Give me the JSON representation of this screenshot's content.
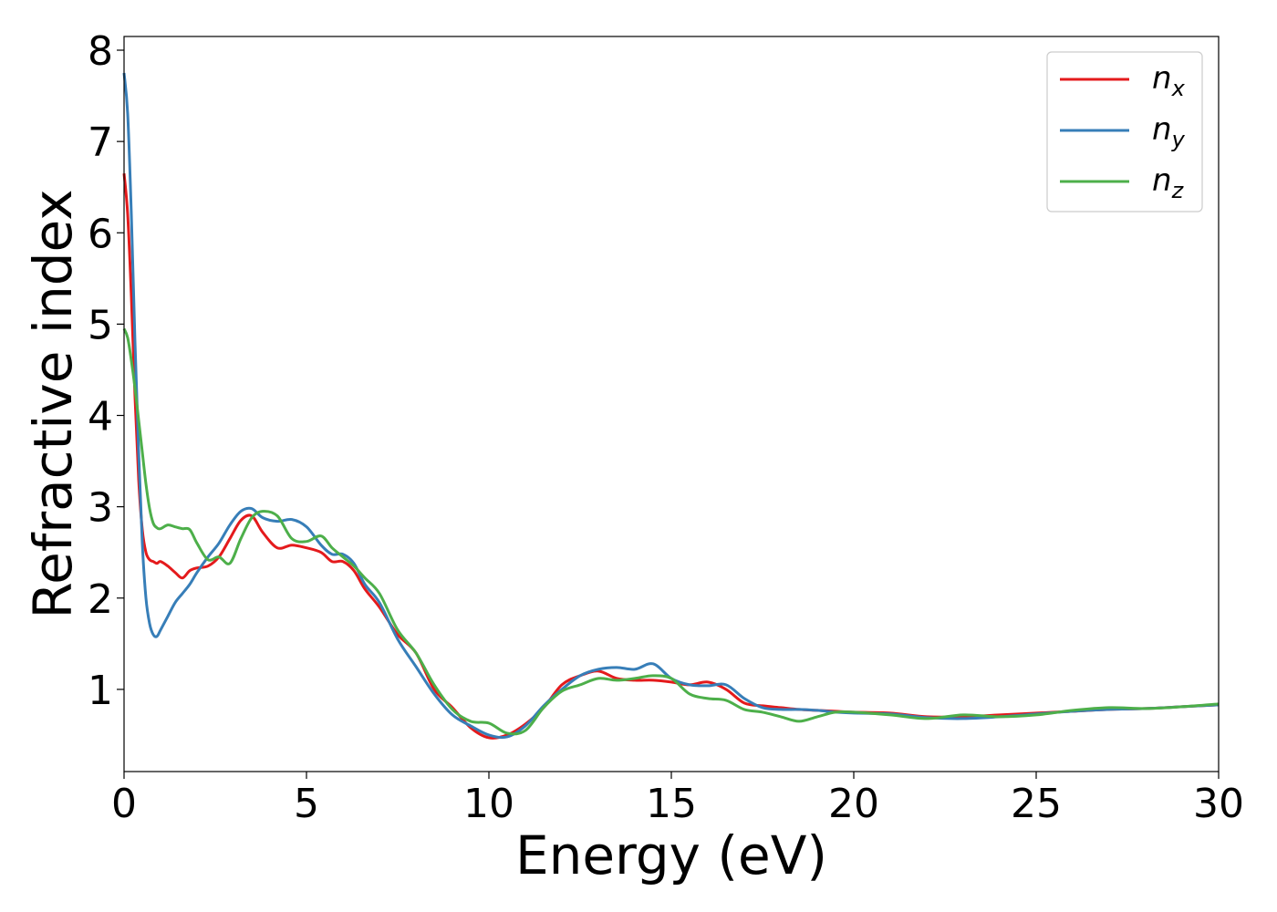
{
  "chart_data": {
    "type": "line",
    "xlabel": "Energy (eV)",
    "ylabel": "Refractive index",
    "xlim": [
      0,
      30
    ],
    "ylim": [
      0.1,
      8.15
    ],
    "xticks": [
      0,
      5,
      10,
      15,
      20,
      25,
      30
    ],
    "yticks": [
      1,
      2,
      3,
      4,
      5,
      6,
      7,
      8
    ],
    "grid": false,
    "legend_position": "top-right",
    "series": [
      {
        "name": "n",
        "subscript": "x",
        "color": "#e41a1c",
        "x": [
          0,
          0.1,
          0.2,
          0.3,
          0.4,
          0.5,
          0.6,
          0.7,
          0.8,
          0.9,
          1.0,
          1.2,
          1.4,
          1.6,
          1.8,
          2.0,
          2.3,
          2.6,
          2.9,
          3.2,
          3.5,
          3.8,
          4.2,
          4.6,
          5.0,
          5.4,
          5.7,
          6.0,
          6.3,
          6.6,
          7.0,
          7.5,
          8.0,
          8.5,
          9.0,
          9.5,
          10.0,
          10.5,
          11.0,
          11.5,
          12.0,
          12.5,
          13.0,
          13.5,
          14.0,
          14.5,
          15.0,
          15.5,
          16.0,
          16.5,
          17.0,
          17.5,
          18.0,
          18.5,
          19.0,
          19.5,
          20.0,
          21.0,
          22.0,
          23.0,
          24.0,
          25.0,
          26.0,
          27.0,
          28.0,
          29.0,
          30.0
        ],
        "y": [
          6.65,
          6.2,
          5.3,
          4.2,
          3.3,
          2.75,
          2.5,
          2.42,
          2.4,
          2.38,
          2.4,
          2.35,
          2.28,
          2.22,
          2.3,
          2.33,
          2.35,
          2.45,
          2.65,
          2.85,
          2.9,
          2.72,
          2.55,
          2.58,
          2.55,
          2.5,
          2.4,
          2.4,
          2.3,
          2.1,
          1.9,
          1.6,
          1.4,
          1.0,
          0.8,
          0.58,
          0.47,
          0.5,
          0.62,
          0.8,
          1.05,
          1.15,
          1.2,
          1.12,
          1.1,
          1.1,
          1.08,
          1.05,
          1.08,
          1.0,
          0.85,
          0.82,
          0.8,
          0.78,
          0.77,
          0.76,
          0.75,
          0.74,
          0.7,
          0.7,
          0.72,
          0.74,
          0.76,
          0.78,
          0.79,
          0.81,
          0.83
        ]
      },
      {
        "name": "n",
        "subscript": "y",
        "color": "#377eb8",
        "x": [
          0,
          0.1,
          0.2,
          0.3,
          0.4,
          0.5,
          0.6,
          0.7,
          0.8,
          0.9,
          1.0,
          1.2,
          1.4,
          1.6,
          1.8,
          2.0,
          2.3,
          2.6,
          2.9,
          3.2,
          3.5,
          3.8,
          4.2,
          4.6,
          5.0,
          5.4,
          5.7,
          6.0,
          6.3,
          6.6,
          7.0,
          7.5,
          8.0,
          8.5,
          9.0,
          9.5,
          10.0,
          10.5,
          11.0,
          11.5,
          12.0,
          12.5,
          13.0,
          13.5,
          14.0,
          14.5,
          15.0,
          15.5,
          16.0,
          16.5,
          17.0,
          17.5,
          18.0,
          18.5,
          19.0,
          19.5,
          20.0,
          21.0,
          22.0,
          23.0,
          24.0,
          25.0,
          26.0,
          27.0,
          28.0,
          29.0,
          30.0
        ],
        "y": [
          7.75,
          7.3,
          6.2,
          4.8,
          3.6,
          2.6,
          2.0,
          1.72,
          1.6,
          1.58,
          1.65,
          1.8,
          1.95,
          2.05,
          2.15,
          2.28,
          2.45,
          2.6,
          2.8,
          2.95,
          2.98,
          2.88,
          2.84,
          2.86,
          2.78,
          2.58,
          2.48,
          2.48,
          2.38,
          2.15,
          1.95,
          1.55,
          1.25,
          0.95,
          0.72,
          0.6,
          0.5,
          0.48,
          0.6,
          0.82,
          1.0,
          1.15,
          1.22,
          1.24,
          1.22,
          1.28,
          1.12,
          1.05,
          1.04,
          1.05,
          0.9,
          0.8,
          0.78,
          0.78,
          0.77,
          0.75,
          0.74,
          0.73,
          0.69,
          0.68,
          0.7,
          0.73,
          0.76,
          0.78,
          0.79,
          0.81,
          0.83
        ]
      },
      {
        "name": "n",
        "subscript": "z",
        "color": "#4daf4a",
        "x": [
          0,
          0.1,
          0.2,
          0.3,
          0.4,
          0.5,
          0.6,
          0.7,
          0.8,
          0.9,
          1.0,
          1.2,
          1.4,
          1.6,
          1.8,
          2.0,
          2.3,
          2.6,
          2.9,
          3.2,
          3.5,
          3.8,
          4.2,
          4.6,
          5.0,
          5.4,
          5.7,
          6.0,
          6.3,
          6.6,
          7.0,
          7.5,
          8.0,
          8.5,
          9.0,
          9.5,
          10.0,
          10.5,
          11.0,
          11.5,
          12.0,
          12.5,
          13.0,
          13.5,
          14.0,
          14.5,
          15.0,
          15.5,
          16.0,
          16.5,
          17.0,
          17.5,
          18.0,
          18.5,
          19.0,
          19.5,
          20.0,
          21.0,
          22.0,
          23.0,
          24.0,
          25.0,
          26.0,
          27.0,
          28.0,
          29.0,
          30.0
        ],
        "y": [
          4.95,
          4.85,
          4.6,
          4.3,
          3.95,
          3.6,
          3.25,
          2.98,
          2.82,
          2.77,
          2.76,
          2.8,
          2.78,
          2.76,
          2.75,
          2.6,
          2.42,
          2.45,
          2.38,
          2.65,
          2.88,
          2.95,
          2.9,
          2.65,
          2.62,
          2.68,
          2.55,
          2.45,
          2.35,
          2.22,
          2.05,
          1.65,
          1.4,
          1.05,
          0.78,
          0.65,
          0.63,
          0.52,
          0.55,
          0.8,
          0.98,
          1.05,
          1.12,
          1.1,
          1.12,
          1.15,
          1.12,
          0.95,
          0.9,
          0.88,
          0.78,
          0.75,
          0.7,
          0.65,
          0.7,
          0.75,
          0.75,
          0.72,
          0.68,
          0.72,
          0.7,
          0.72,
          0.77,
          0.8,
          0.79,
          0.81,
          0.84
        ]
      }
    ]
  }
}
